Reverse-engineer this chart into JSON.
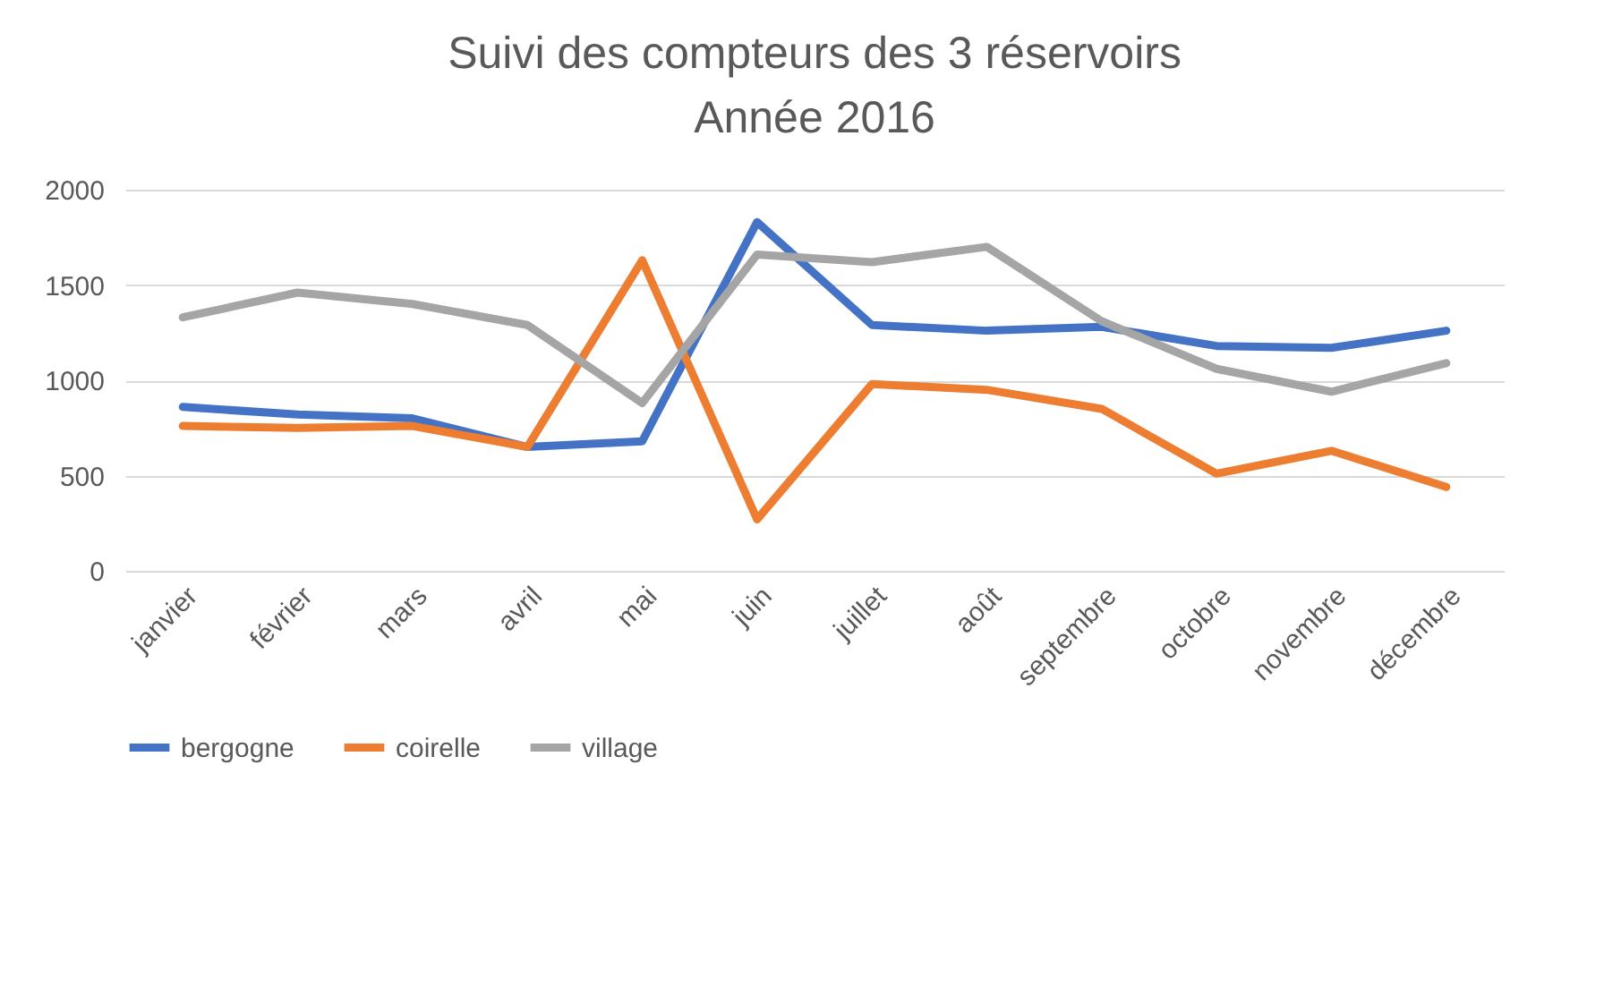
{
  "chart_data": {
    "type": "line",
    "title": "Suivi des compteurs des 3 réservoirs Année 2016",
    "categories": [
      "janvier",
      "février",
      "mars",
      "avril",
      "mai",
      "juin",
      "juillet",
      "août",
      "septembre",
      "octobre",
      "novembre",
      "décembre"
    ],
    "series": [
      {
        "name": "bergogne",
        "color": "#4472c4",
        "values": [
          860,
          820,
          800,
          650,
          680,
          1830,
          1290,
          1260,
          1280,
          1180,
          1170,
          1260
        ]
      },
      {
        "name": "coirelle",
        "color": "#ed7d31",
        "values": [
          760,
          750,
          760,
          650,
          1630,
          270,
          980,
          950,
          850,
          510,
          630,
          440
        ]
      },
      {
        "name": "village",
        "color": "#a5a5a5",
        "values": [
          1330,
          1460,
          1400,
          1290,
          880,
          1660,
          1620,
          1700,
          1310,
          1060,
          940,
          1090
        ]
      }
    ],
    "ylim": [
      0,
      2000
    ],
    "yticks": [
      0,
      500,
      1000,
      1500,
      2000
    ],
    "grid": "y",
    "legend": "bottom",
    "marker": "none",
    "line_style": "solid"
  }
}
